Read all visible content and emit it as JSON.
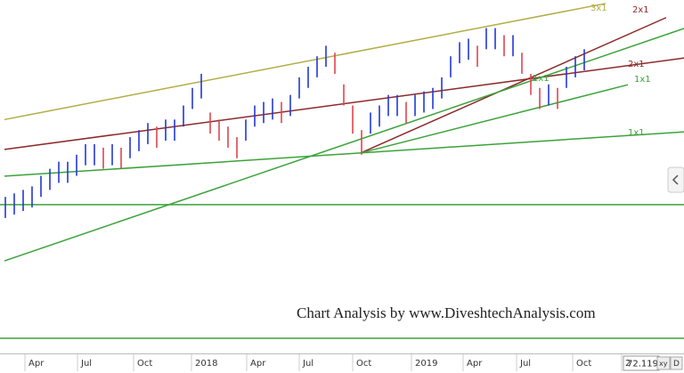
{
  "chart_data": {
    "type": "ohlc",
    "watermark": "Chart Analysis by www.DiveshtechAnalysis.com",
    "price_label": "72.119",
    "buttons": [
      "xy",
      "D"
    ],
    "up_color": "#2338d6",
    "down_color": "#e0454f",
    "xlim": [
      -0.6,
      76.2
    ],
    "ylim": [
      0,
      100
    ],
    "xticks": [
      {
        "value": 2.2,
        "label": "Apr"
      },
      {
        "value": 8.1,
        "label": "Jul"
      },
      {
        "value": 14.4,
        "label": "Oct"
      },
      {
        "value": 20.9,
        "label": "2018"
      },
      {
        "value": 27.1,
        "label": "Apr"
      },
      {
        "value": 33,
        "label": "Jul"
      },
      {
        "value": 39,
        "label": "Oct"
      },
      {
        "value": 45.6,
        "label": "2019"
      },
      {
        "value": 51.4,
        "label": "Apr"
      },
      {
        "value": 57.4,
        "label": "Jul"
      },
      {
        "value": 63.7,
        "label": "Oct"
      },
      {
        "value": 69.2,
        "label": "2"
      }
    ],
    "highs": [
      44,
      45,
      46,
      47,
      50,
      52,
      54,
      54,
      56,
      59,
      59,
      58,
      59,
      58,
      61,
      63,
      65,
      64,
      66,
      66,
      70,
      75,
      79,
      68,
      66,
      64,
      61,
      66,
      70,
      71,
      72,
      71,
      73,
      78,
      81,
      84,
      87,
      85,
      76,
      70,
      63,
      68,
      70,
      73,
      73,
      71,
      73,
      74,
      75,
      78,
      84,
      88,
      89,
      87,
      92,
      92,
      90,
      90,
      85,
      79,
      75,
      76,
      75,
      81,
      84,
      86
    ],
    "lows": [
      38,
      39,
      40,
      41,
      44,
      46,
      48,
      48,
      50,
      53,
      53,
      52,
      53,
      52,
      55,
      57,
      59,
      58,
      60,
      60,
      64,
      69,
      72,
      62,
      60,
      58,
      55,
      60,
      64,
      65,
      66,
      65,
      67,
      72,
      75,
      78,
      81,
      79,
      70,
      62,
      56,
      62,
      64,
      67,
      67,
      65,
      67,
      68,
      69,
      72,
      78,
      82,
      83,
      81,
      86,
      86,
      84,
      84,
      79,
      73,
      69,
      70,
      69,
      75,
      78,
      80
    ],
    "lines": [
      {
        "label": "3x1",
        "color": "#b3ad45",
        "from": [
          -0.1,
          66
        ],
        "to": [
          67.4,
          99
        ]
      },
      {
        "label": "2x1",
        "color": "#8b2a2a",
        "from": [
          39.9,
          56.5
        ],
        "to": [
          74.2,
          95
        ]
      },
      {
        "label": "2x1",
        "color": "#8b2a2a",
        "from": [
          -0.1,
          57.5
        ],
        "to": [
          76.2,
          83.5
        ]
      },
      {
        "label": "1x1",
        "color": "#3aa33a",
        "from": [
          -0.1,
          25.8
        ],
        "to": [
          76.2,
          91.9
        ]
      },
      {
        "label": "1x1",
        "color": "#3aa33a",
        "from": [
          39.9,
          56.5
        ],
        "to": [
          69.9,
          75.9
        ]
      },
      {
        "label": "1x1",
        "color": "#3aa33a",
        "from": [
          -0.1,
          49.9
        ],
        "to": [
          76.2,
          62.5
        ]
      },
      {
        "color": "#3aa33a",
        "from": [
          -0.6,
          41.8
        ],
        "to": [
          76.2,
          41.8
        ]
      },
      {
        "color": "#3aa33a",
        "from": [
          -0.6,
          3.8
        ],
        "to": [
          76.2,
          3.8
        ]
      }
    ]
  }
}
